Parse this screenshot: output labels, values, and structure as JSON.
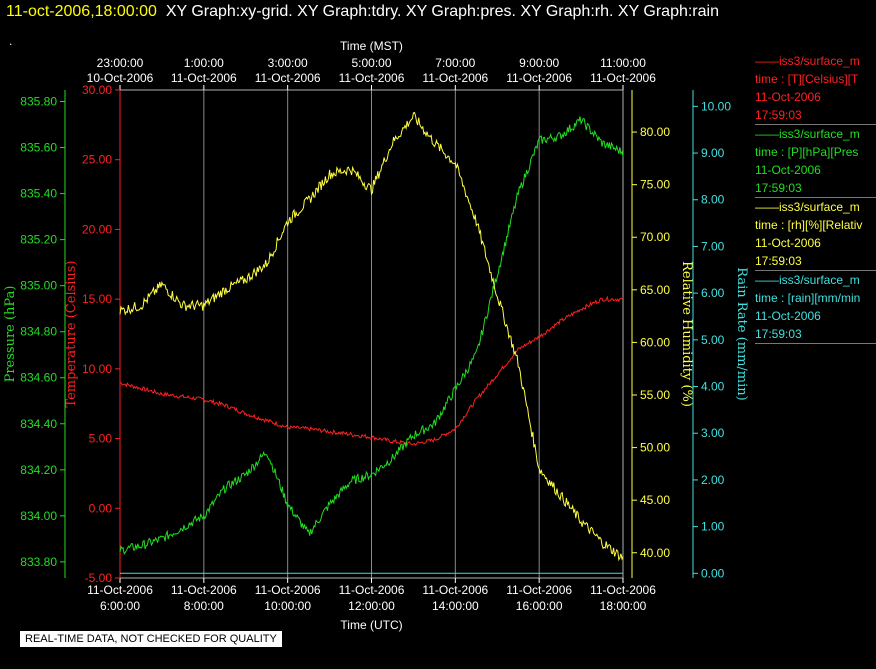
{
  "header": {
    "stamp": "11-oct-2006,18:00:00",
    "graphs": "XY Graph:xy-grid.  XY Graph:tdry.  XY Graph:pres.  XY Graph:rh.  XY Graph:rain"
  },
  "dot": ".",
  "notice": "REAL-TIME DATA, NOT CHECKED FOR QUALITY",
  "legend": [
    {
      "name": "iss3/surface_m",
      "line2": "time : [T][Celsius][T",
      "date": "11-Oct-2006",
      "time": "17:59:03",
      "color": "#ff2020"
    },
    {
      "name": "iss3/surface_m",
      "line2": "time : [P][hPa][Pres",
      "date": "11-Oct-2006",
      "time": "17:59:03",
      "color": "#22dd22"
    },
    {
      "name": "iss3/surface_m",
      "line2": "time : [rh][%][Relativ",
      "date": "11-Oct-2006",
      "time": "17:59:03",
      "color": "#ffff40"
    },
    {
      "name": "iss3/surface_m",
      "line2": "time : [rain][mm/min",
      "date": "11-Oct-2006",
      "time": "17:59:03",
      "color": "#40e0e0"
    }
  ],
  "chart_data": {
    "type": "line",
    "x_axis_bottom": {
      "label": "Time (UTC)",
      "ticks": [
        {
          "date": "11-Oct-2006",
          "time": "6:00:00"
        },
        {
          "date": "11-Oct-2006",
          "time": "8:00:00"
        },
        {
          "date": "11-Oct-2006",
          "time": "10:00:00"
        },
        {
          "date": "11-Oct-2006",
          "time": "12:00:00"
        },
        {
          "date": "11-Oct-2006",
          "time": "14:00:00"
        },
        {
          "date": "11-Oct-2006",
          "time": "16:00:00"
        },
        {
          "date": "11-Oct-2006",
          "time": "18:00:00"
        }
      ]
    },
    "x_axis_top": {
      "label": "Time (MST)",
      "ticks": [
        {
          "time": "23:00:00",
          "date": "10-Oct-2006"
        },
        {
          "time": "1:00:00",
          "date": "11-Oct-2006"
        },
        {
          "time": "3:00:00",
          "date": "11-Oct-2006"
        },
        {
          "time": "5:00:00",
          "date": "11-Oct-2006"
        },
        {
          "time": "7:00:00",
          "date": "11-Oct-2006"
        },
        {
          "time": "9:00:00",
          "date": "11-Oct-2006"
        },
        {
          "time": "11:00:00",
          "date": "11-Oct-2006"
        }
      ]
    },
    "x_range_utc_hours": [
      6,
      18
    ],
    "y_axes": {
      "pressure": {
        "label": "Pressure (hPa)",
        "color": "#22dd22",
        "range": [
          833.73,
          835.85
        ],
        "ticks": [
          "833.80",
          "834.00",
          "834.20",
          "834.40",
          "834.60",
          "834.80",
          "835.00",
          "835.20",
          "835.40",
          "835.60",
          "835.80"
        ]
      },
      "temperature": {
        "label": "Temperature (Celsius)",
        "color": "#ff2020",
        "range": [
          -5,
          30
        ],
        "ticks": [
          "-5.00",
          "0.00",
          "5.00",
          "10.00",
          "15.00",
          "20.00",
          "25.00",
          "30.00"
        ]
      },
      "humidity": {
        "label": "Relative Humidity (%)",
        "color": "#ffff40",
        "range": [
          37.6,
          84.0
        ],
        "ticks": [
          "40.00",
          "45.00",
          "50.00",
          "55.00",
          "60.00",
          "65.00",
          "70.00",
          "75.00",
          "80.00"
        ]
      },
      "rain": {
        "label": "Rain Rate (mm/min)",
        "color": "#40e0e0",
        "range": [
          -0.1,
          10.35
        ],
        "ticks": [
          "0.00",
          "1.00",
          "2.00",
          "3.00",
          "4.00",
          "5.00",
          "6.00",
          "7.00",
          "8.00",
          "9.00",
          "10.00"
        ]
      }
    },
    "series": [
      {
        "name": "iss3/surface_m time:[T]",
        "axis": "temperature",
        "color": "#ff2020",
        "x": [
          6.0,
          6.5,
          7.0,
          7.5,
          8.0,
          8.5,
          9.0,
          9.5,
          10.0,
          10.5,
          11.0,
          11.5,
          12.0,
          12.5,
          13.0,
          13.5,
          14.0,
          14.5,
          15.0,
          15.5,
          16.0,
          16.5,
          17.0,
          17.5,
          18.0
        ],
        "y": [
          9.0,
          8.6,
          8.2,
          8.0,
          7.8,
          7.4,
          6.8,
          6.3,
          5.8,
          5.7,
          5.5,
          5.3,
          5.1,
          4.8,
          4.6,
          4.9,
          5.7,
          7.8,
          9.6,
          11.4,
          12.3,
          13.4,
          14.3,
          15.0,
          15.0
        ]
      },
      {
        "name": "iss3/surface_m time:[P]",
        "axis": "pressure",
        "color": "#22dd22",
        "x": [
          6.0,
          6.5,
          7.0,
          7.5,
          8.0,
          8.5,
          9.0,
          9.5,
          10.0,
          10.5,
          11.0,
          11.5,
          12.0,
          12.5,
          13.0,
          13.5,
          14.0,
          14.5,
          15.0,
          15.5,
          16.0,
          16.5,
          17.0,
          17.5,
          18.0
        ],
        "y": [
          833.85,
          833.87,
          833.9,
          833.95,
          834.0,
          834.12,
          834.18,
          834.28,
          834.05,
          833.92,
          834.05,
          834.15,
          834.18,
          834.25,
          834.35,
          834.4,
          834.55,
          834.7,
          835.05,
          835.4,
          835.63,
          835.65,
          835.72,
          835.62,
          835.58
        ]
      },
      {
        "name": "iss3/surface_m time:[rh]",
        "axis": "humidity",
        "color": "#ffff40",
        "x": [
          6.0,
          6.5,
          7.0,
          7.5,
          8.0,
          8.5,
          9.0,
          9.5,
          10.0,
          10.5,
          11.0,
          11.5,
          12.0,
          12.5,
          13.0,
          13.5,
          14.0,
          14.5,
          15.0,
          15.5,
          16.0,
          16.5,
          17.0,
          17.5,
          18.0
        ],
        "y": [
          63.0,
          63.5,
          65.5,
          63.5,
          63.5,
          65.0,
          66.0,
          67.5,
          71.5,
          73.5,
          76.0,
          76.5,
          74.5,
          79.0,
          81.5,
          79.0,
          77.0,
          71.5,
          64.5,
          58.0,
          48.0,
          45.5,
          43.0,
          41.0,
          39.5
        ]
      },
      {
        "name": "iss3/surface_m time:[rain]",
        "axis": "rain",
        "color": "#40e0e0",
        "x": [
          6.0,
          18.0
        ],
        "y": [
          0.0,
          0.0
        ]
      }
    ]
  }
}
